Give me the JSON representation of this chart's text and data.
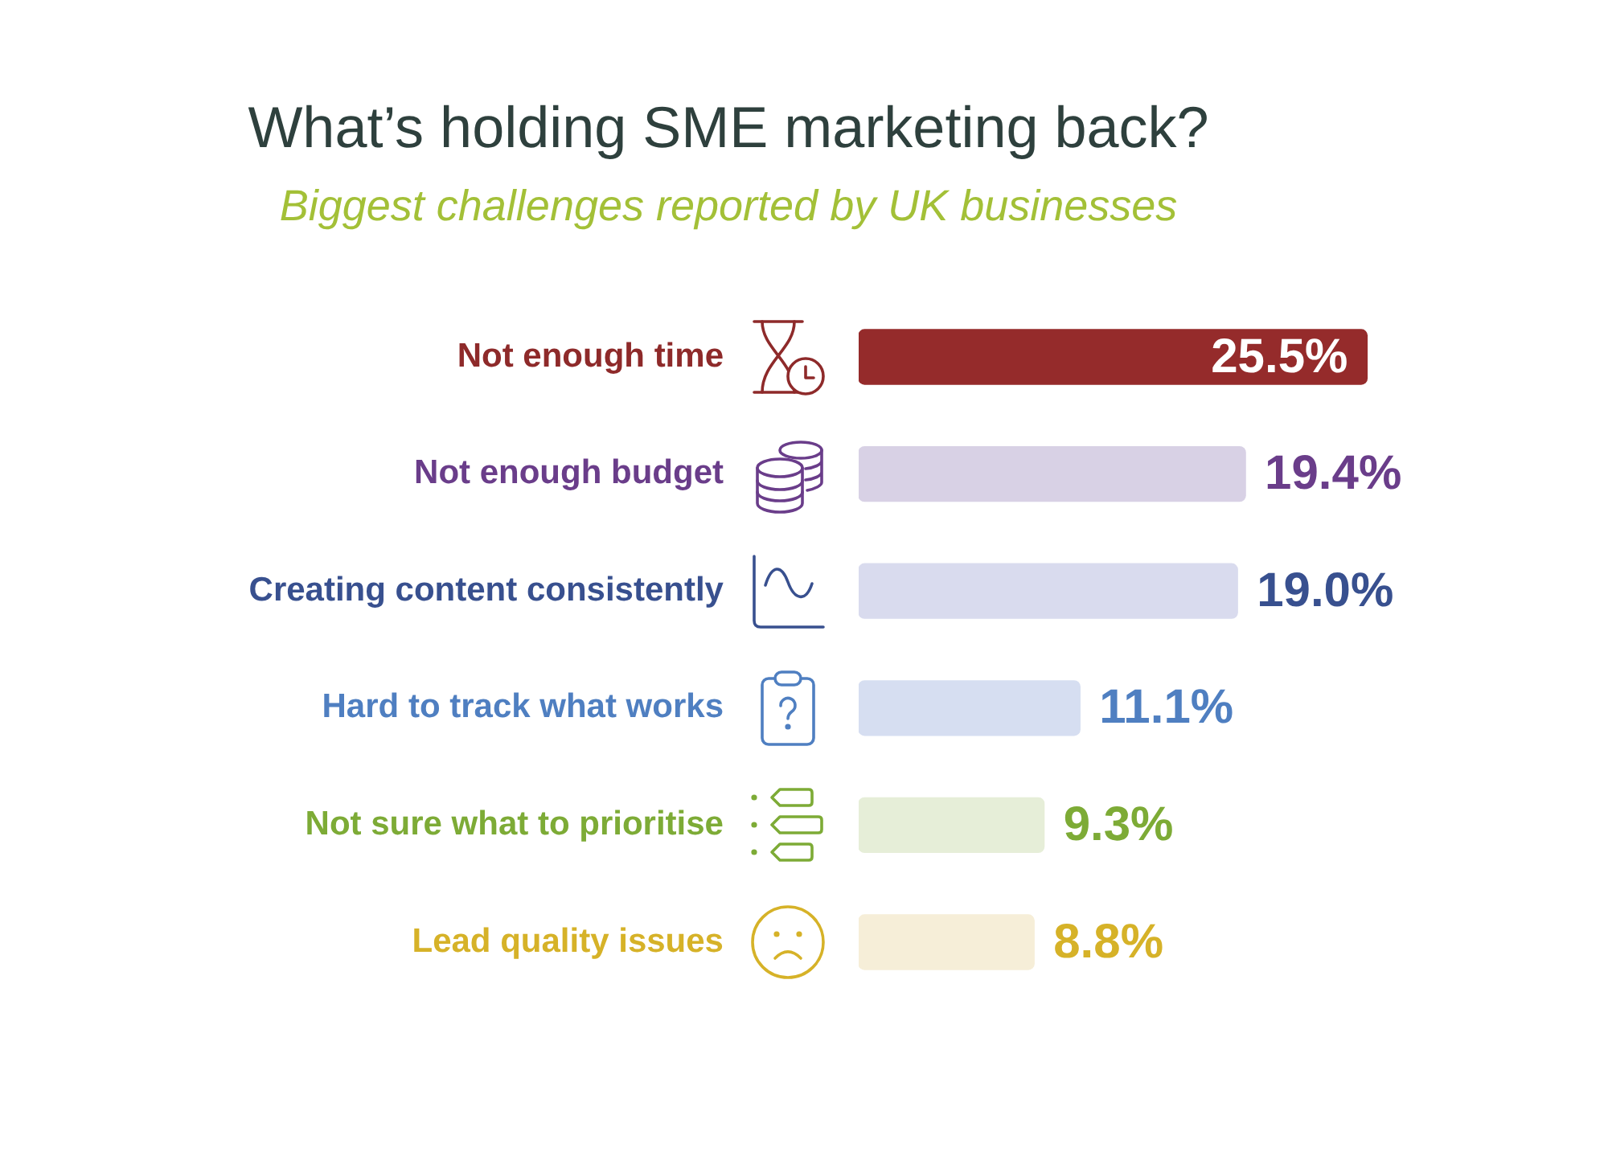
{
  "chart_data": {
    "type": "bar",
    "orientation": "horizontal",
    "title": "What’s holding SME marketing back?",
    "subtitle": "Biggest challenges reported by UK businesses",
    "categories": [
      "Not enough time",
      "Not enough budget",
      "Creating content consistently",
      "Hard to track what works",
      "Not sure what to prioritise",
      "Lead quality issues"
    ],
    "values": [
      25.5,
      19.4,
      19.0,
      11.1,
      9.3,
      8.8
    ],
    "colors": [
      "#952b2b",
      "#d8d1e5",
      "#d9dbee",
      "#d6def1",
      "#e6eed8",
      "#f6eed8"
    ],
    "value_labels": [
      "25.5%",
      "19.4%",
      "19.0%",
      "11.1%",
      "9.3%",
      "8.8%"
    ],
    "tick_labels": "y"
  }
}
